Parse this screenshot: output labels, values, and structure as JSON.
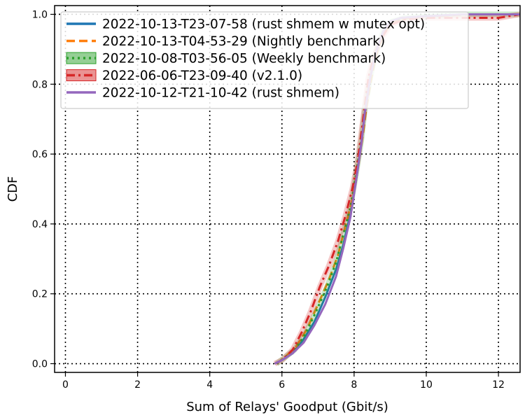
{
  "chart_data": {
    "type": "line",
    "subtype": "cdf",
    "xlabel": "Sum of Relays' Goodput (Gbit/s)",
    "ylabel": "CDF",
    "xlim": [
      -0.3,
      12.6
    ],
    "ylim": [
      -0.025,
      1.025
    ],
    "xticks": [
      0,
      2,
      4,
      6,
      8,
      10,
      12
    ],
    "yticks": [
      0.0,
      0.2,
      0.4,
      0.6,
      0.8,
      1.0
    ],
    "xtick_labels": [
      "0",
      "2",
      "4",
      "6",
      "8",
      "10",
      "12"
    ],
    "ytick_labels": [
      "0.0",
      "0.2",
      "0.4",
      "0.6",
      "0.8",
      "1.0"
    ],
    "grid": true,
    "grid_style": "dotted",
    "legend_position": "upper-left",
    "series": [
      {
        "name": "2022-10-13-T23-07-58 (rust shmem w mutex opt)",
        "color": "#1f77b4",
        "dash": "solid",
        "style": "line",
        "x": [
          5.8,
          6.0,
          6.3,
          6.6,
          6.9,
          7.2,
          7.5,
          7.7,
          7.9,
          8.05,
          8.2,
          8.3,
          8.45,
          8.6,
          8.8,
          9.0,
          9.3,
          10.0,
          11.0,
          12.6
        ],
        "y": [
          0.0,
          0.01,
          0.03,
          0.07,
          0.12,
          0.19,
          0.27,
          0.34,
          0.43,
          0.52,
          0.63,
          0.72,
          0.82,
          0.89,
          0.95,
          0.98,
          0.99,
          0.995,
          1.0,
          1.0
        ]
      },
      {
        "name": "2022-10-13-T04-53-29 (Nightly benchmark)",
        "color": "#ff7f0e",
        "dash": "dashed",
        "style": "line",
        "x": [
          5.85,
          6.1,
          6.4,
          6.7,
          7.0,
          7.3,
          7.55,
          7.75,
          7.95,
          8.1,
          8.25,
          8.35,
          8.5,
          8.65,
          8.85,
          9.1,
          9.5,
          10.2,
          11.2,
          12.6
        ],
        "y": [
          0.0,
          0.02,
          0.05,
          0.1,
          0.17,
          0.24,
          0.31,
          0.39,
          0.47,
          0.56,
          0.66,
          0.74,
          0.83,
          0.9,
          0.95,
          0.98,
          0.99,
          0.995,
          1.0,
          1.0
        ]
      },
      {
        "name": "2022-10-08-T03-56-05 (Weekly benchmark)",
        "color": "#2ca02c",
        "dash": "dotted",
        "style": "band",
        "x": [
          5.85,
          6.05,
          6.35,
          6.65,
          6.95,
          7.25,
          7.5,
          7.7,
          7.9,
          8.05,
          8.2,
          8.3,
          8.45,
          8.6,
          8.8,
          9.05,
          9.4,
          10.1,
          11.1,
          12.6
        ],
        "y": [
          0.0,
          0.015,
          0.04,
          0.085,
          0.15,
          0.22,
          0.29,
          0.37,
          0.45,
          0.54,
          0.64,
          0.73,
          0.82,
          0.89,
          0.95,
          0.98,
          0.99,
          0.995,
          1.0,
          1.0
        ]
      },
      {
        "name": "2022-06-06-T23-09-40 (v2.1.0)",
        "color": "#d62728",
        "dash": "dashdot",
        "style": "band",
        "x": [
          5.8,
          6.0,
          6.3,
          6.55,
          6.8,
          7.05,
          7.3,
          7.55,
          7.75,
          7.95,
          8.1,
          8.2,
          8.3,
          8.4,
          8.55,
          8.75,
          9.0,
          9.4,
          10.0,
          11.0,
          12.0,
          12.6
        ],
        "y": [
          0.0,
          0.01,
          0.04,
          0.09,
          0.15,
          0.22,
          0.28,
          0.35,
          0.42,
          0.5,
          0.58,
          0.66,
          0.74,
          0.82,
          0.88,
          0.93,
          0.97,
          0.985,
          0.99,
          0.99,
          0.99,
          1.0
        ]
      },
      {
        "name": "2022-10-12-T21-10-42 (rust shmem)",
        "color": "#9467bd",
        "dash": "solid",
        "style": "line",
        "x": [
          5.8,
          6.0,
          6.3,
          6.6,
          6.9,
          7.2,
          7.5,
          7.7,
          7.9,
          8.05,
          8.2,
          8.3,
          8.45,
          8.6,
          8.8,
          9.0,
          9.3,
          10.0,
          11.0,
          12.6
        ],
        "y": [
          0.0,
          0.01,
          0.03,
          0.06,
          0.11,
          0.17,
          0.25,
          0.33,
          0.42,
          0.52,
          0.63,
          0.72,
          0.82,
          0.89,
          0.95,
          0.98,
          0.99,
          0.995,
          1.0,
          1.0
        ]
      }
    ]
  }
}
